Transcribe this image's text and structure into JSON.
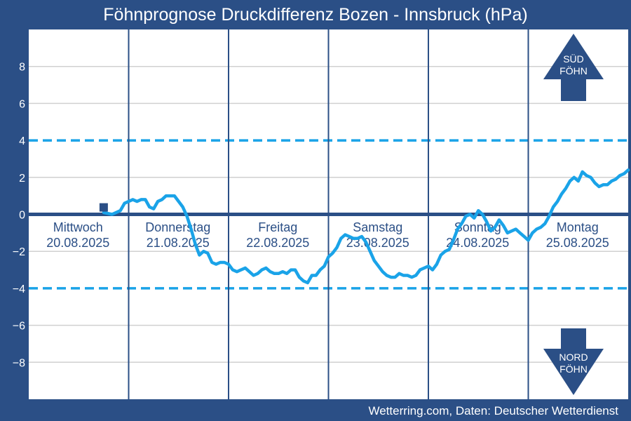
{
  "title": "Föhnprognose Druckdifferenz Bozen - Innsbruck (hPa)",
  "footer": "Wetterring.com, Daten: Deutscher Wetterdienst",
  "colors": {
    "background": "#2b4f86",
    "plot_background": "#ffffff",
    "series": "#1aa3e8",
    "threshold": "#1aa3e8",
    "zero_line": "#2b4f86",
    "grid": "#d0d0d0"
  },
  "chart_data": {
    "type": "line",
    "title": "Föhnprognose Druckdifferenz Bozen - Innsbruck (hPa)",
    "xlabel": "",
    "ylabel": "",
    "ylim": [
      -10,
      10
    ],
    "yticks": [
      -8,
      -6,
      -4,
      -2,
      0,
      2,
      4,
      6,
      8
    ],
    "grid": true,
    "x_unit": "hours from 20.08.2025 00:00",
    "xlim": [
      0,
      144
    ],
    "days": [
      {
        "weekday": "Mittwoch",
        "date": "20.08.2025"
      },
      {
        "weekday": "Donnerstag",
        "date": "21.08.2025"
      },
      {
        "weekday": "Freitag",
        "date": "22.08.2025"
      },
      {
        "weekday": "Samstag",
        "date": "23.08.2025"
      },
      {
        "weekday": "Sonntag",
        "date": "24.08.2025"
      },
      {
        "weekday": "Montag",
        "date": "25.08.2025"
      }
    ],
    "thresholds": [
      4,
      -4
    ],
    "marker": {
      "x": 18,
      "y": 0.3
    },
    "series": [
      {
        "x": [
          18,
          20,
          22,
          23,
          24,
          25,
          26,
          27,
          28,
          29,
          30,
          31,
          32,
          33,
          34,
          35,
          36,
          37,
          38,
          39,
          40,
          41,
          42,
          43,
          44,
          45,
          46,
          47,
          48,
          49,
          50,
          51,
          52,
          53,
          54,
          55,
          56,
          57,
          58,
          59,
          60,
          61,
          62,
          63,
          64,
          65,
          66,
          67,
          68,
          69,
          70,
          71,
          72,
          73,
          74,
          75,
          76,
          77,
          78,
          79,
          80,
          81,
          82,
          83,
          84,
          85,
          86,
          87,
          88,
          89,
          90,
          91,
          92,
          93,
          94,
          95,
          96,
          97,
          98,
          99,
          100,
          101,
          102,
          103,
          104,
          105,
          106,
          107,
          108,
          109,
          110,
          111,
          112,
          113,
          114,
          115,
          116,
          117,
          118,
          119,
          120,
          121,
          122,
          123,
          124,
          125,
          126,
          127,
          128,
          129,
          130,
          131,
          132,
          133,
          134,
          135,
          136,
          137,
          138,
          139,
          140,
          141,
          142,
          143,
          144
        ],
        "values": [
          0.1,
          0.0,
          0.2,
          0.6,
          0.7,
          0.8,
          0.7,
          0.8,
          0.8,
          0.4,
          0.3,
          0.7,
          0.8,
          1.0,
          1.0,
          1.0,
          0.7,
          0.4,
          -0.1,
          -0.8,
          -1.6,
          -2.2,
          -2.0,
          -2.1,
          -2.6,
          -2.7,
          -2.6,
          -2.6,
          -2.7,
          -3.0,
          -3.1,
          -3.0,
          -2.9,
          -3.1,
          -3.3,
          -3.2,
          -3.0,
          -2.9,
          -3.1,
          -3.2,
          -3.2,
          -3.1,
          -3.2,
          -3.0,
          -3.0,
          -3.4,
          -3.6,
          -3.7,
          -3.3,
          -3.3,
          -3.0,
          -2.8,
          -2.3,
          -2.1,
          -1.8,
          -1.3,
          -1.1,
          -1.2,
          -1.3,
          -1.3,
          -1.2,
          -1.5,
          -2.0,
          -2.5,
          -2.8,
          -3.1,
          -3.3,
          -3.4,
          -3.4,
          -3.2,
          -3.3,
          -3.3,
          -3.4,
          -3.3,
          -3.0,
          -2.9,
          -2.8,
          -3.0,
          -2.7,
          -2.2,
          -2.0,
          -1.9,
          -1.4,
          -0.8,
          -0.5,
          -0.1,
          0.0,
          -0.2,
          0.2,
          0.0,
          -0.4,
          -0.9,
          -0.7,
          -0.3,
          -0.6,
          -1.0,
          -0.9,
          -0.8,
          -1.0,
          -1.2,
          -1.4,
          -1.0,
          -0.8,
          -0.7,
          -0.5,
          -0.1,
          0.4,
          0.7,
          1.1,
          1.4,
          1.8,
          2.0,
          1.8,
          2.3,
          2.1,
          2.0,
          1.7,
          1.5,
          1.6,
          1.6,
          1.8,
          1.9,
          2.1,
          2.2,
          2.4
        ]
      }
    ]
  },
  "arrows": {
    "up_line1": "SÜD",
    "up_line2": "FÖHN",
    "down_line1": "NORD",
    "down_line2": "FÖHN"
  }
}
